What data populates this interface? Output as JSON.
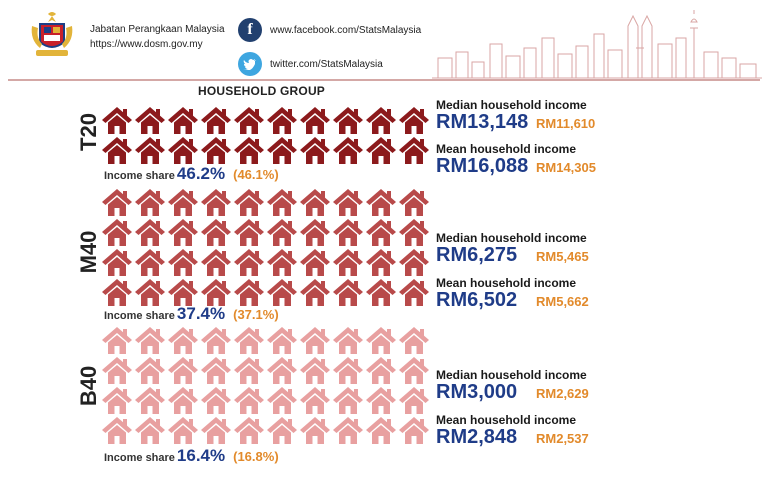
{
  "header": {
    "agency_name": "Jabatan Perangkaan Malaysia",
    "agency_url": "https://www.dosm.gov.my",
    "facebook_url": "www.facebook.com/StatsMalaysia",
    "twitter_url": "twitter.com/StatsMalaysia",
    "facebook_icon": "facebook-icon",
    "twitter_icon": "twitter-icon"
  },
  "title": "HOUSEHOLD GROUP",
  "colors": {
    "t20": "#8c1a1c",
    "m40": "#b84a4a",
    "b40": "#e8a0a0",
    "current": "#1f3c88",
    "previous": "#e28a2b"
  },
  "groups": [
    {
      "key": "t20",
      "label": "T20",
      "houses": 20,
      "share_label": "Income share",
      "share": "46.2%",
      "share_prev": "(46.1%)",
      "median_label": "Median household income",
      "median": "RM13,148",
      "median_prev": "RM11,610",
      "mean_label": "Mean household income",
      "mean": "RM16,088",
      "mean_prev": "RM14,305"
    },
    {
      "key": "m40",
      "label": "M40",
      "houses": 40,
      "share_label": "Income share",
      "share": "37.4%",
      "share_prev": "(37.1%)",
      "median_label": "Median household income",
      "median": "RM6,275",
      "median_prev": "RM5,465",
      "mean_label": "Mean household income",
      "mean": "RM6,502",
      "mean_prev": "RM5,662"
    },
    {
      "key": "b40",
      "label": "B40",
      "houses": 40,
      "share_label": "Income share",
      "share": "16.4%",
      "share_prev": "(16.8%)",
      "median_label": "Median household income",
      "median": "RM3,000",
      "median_prev": "RM2,629",
      "mean_label": "Mean household income",
      "mean": "RM2,848",
      "mean_prev": "RM2,537"
    }
  ]
}
